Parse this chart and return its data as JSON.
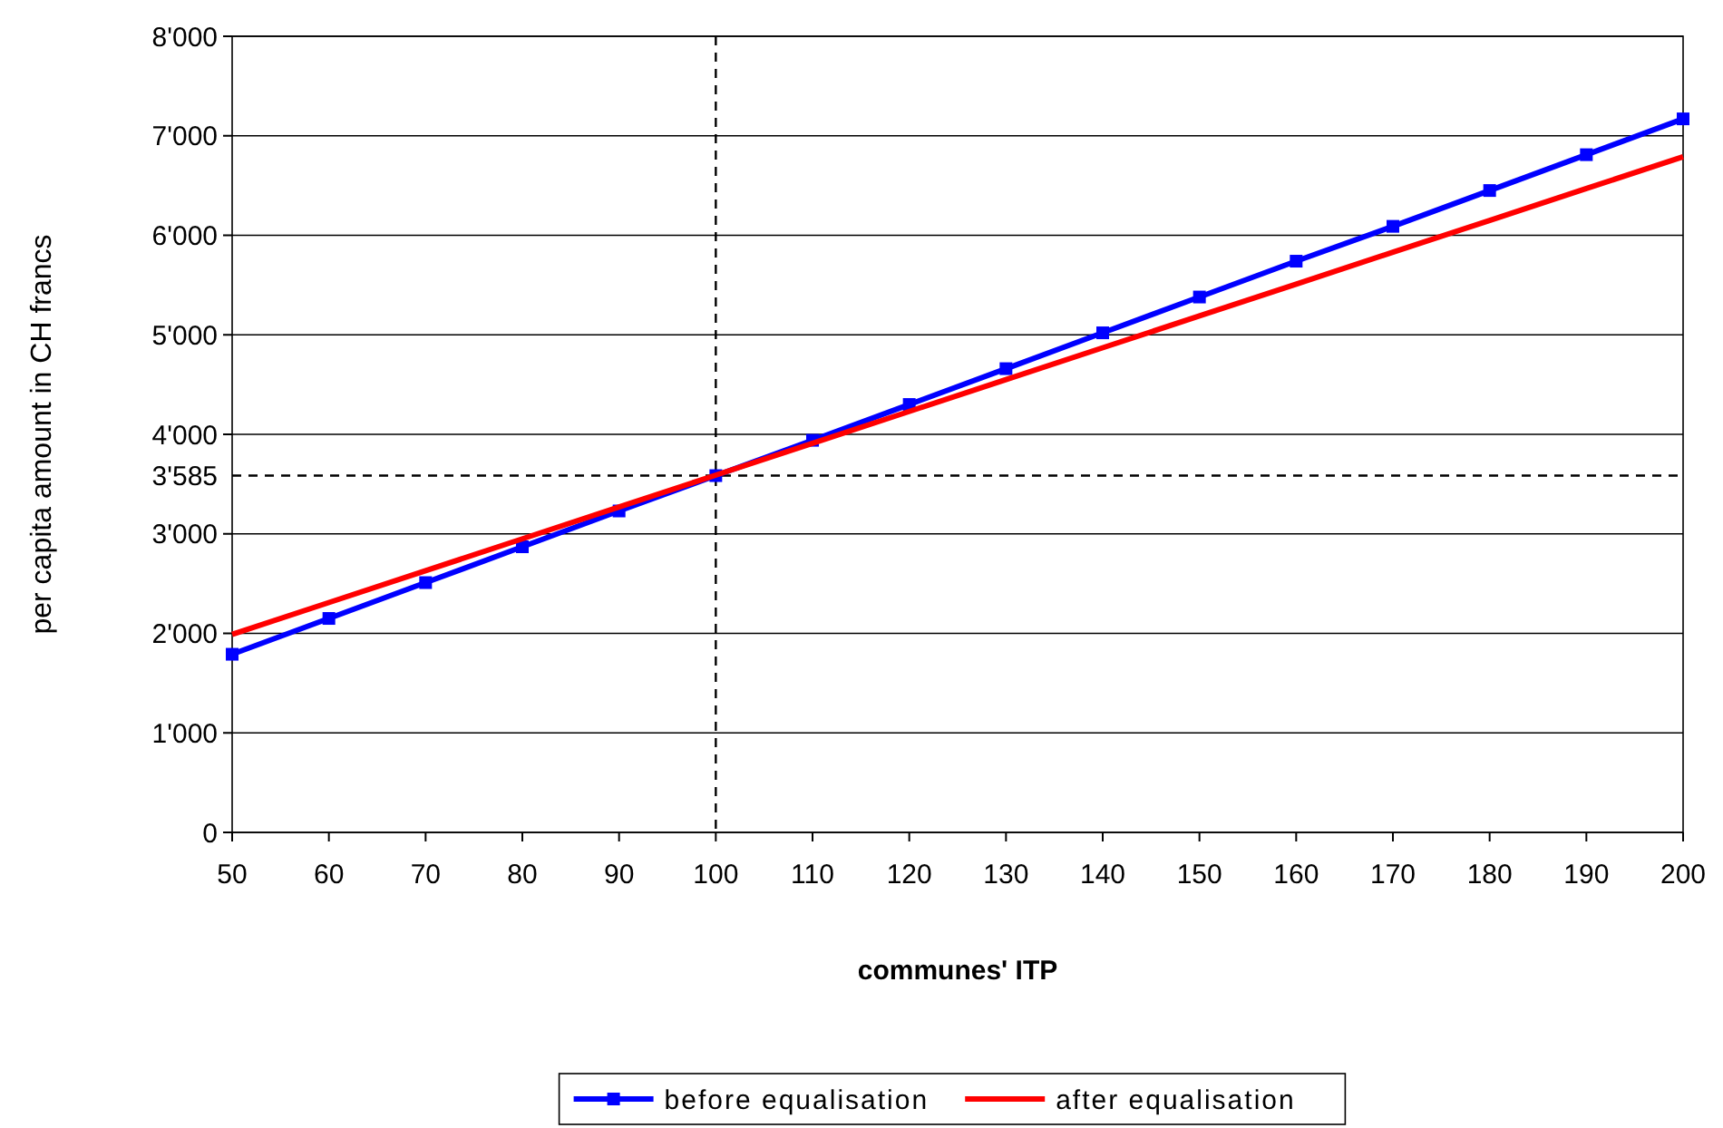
{
  "chart_data": {
    "type": "line",
    "xlabel": "communes' ITP",
    "ylabel": "per capita amount in CH francs",
    "x": [
      50,
      60,
      70,
      80,
      90,
      100,
      110,
      120,
      130,
      140,
      150,
      160,
      170,
      180,
      190,
      200
    ],
    "series": [
      {
        "name": "before equalisation",
        "color": "#0000ff",
        "marker": "square",
        "values": [
          1790,
          2150,
          2510,
          2870,
          3230,
          3585,
          3940,
          4300,
          4660,
          5020,
          5380,
          5740,
          6090,
          6450,
          6810,
          7170
        ]
      },
      {
        "name": "after equalisation",
        "color": "#ff0000",
        "marker": "none",
        "values": [
          1990,
          2310,
          2630,
          2950,
          3270,
          3590,
          3910,
          4230,
          4550,
          4870,
          5190,
          5510,
          5830,
          6150,
          6470,
          6790
        ]
      }
    ],
    "xlim": [
      50,
      200
    ],
    "xticks": [
      50,
      60,
      70,
      80,
      90,
      100,
      110,
      120,
      130,
      140,
      150,
      160,
      170,
      180,
      190,
      200
    ],
    "ylim": [
      0,
      8000
    ],
    "yticks": [
      0,
      {
        "value": 1000,
        "label": "1'000"
      },
      {
        "value": 2000,
        "label": "2'000"
      },
      {
        "value": 3000,
        "label": "3'000"
      },
      {
        "value": 4000,
        "label": "4'000"
      },
      {
        "value": 5000,
        "label": "5'000"
      },
      {
        "value": 6000,
        "label": "6'000"
      },
      {
        "value": 7000,
        "label": "7'000"
      },
      {
        "value": 8000,
        "label": "8'000"
      }
    ],
    "ref_lines": [
      {
        "axis": "y",
        "value": 3585,
        "label": "3'585",
        "color": "#000000",
        "line_style": "dashed"
      },
      {
        "axis": "x",
        "value": 100,
        "color": "#000000",
        "line_style": "dashed"
      }
    ],
    "grid": "y",
    "legend": "bottom",
    "line_style": "solid"
  }
}
